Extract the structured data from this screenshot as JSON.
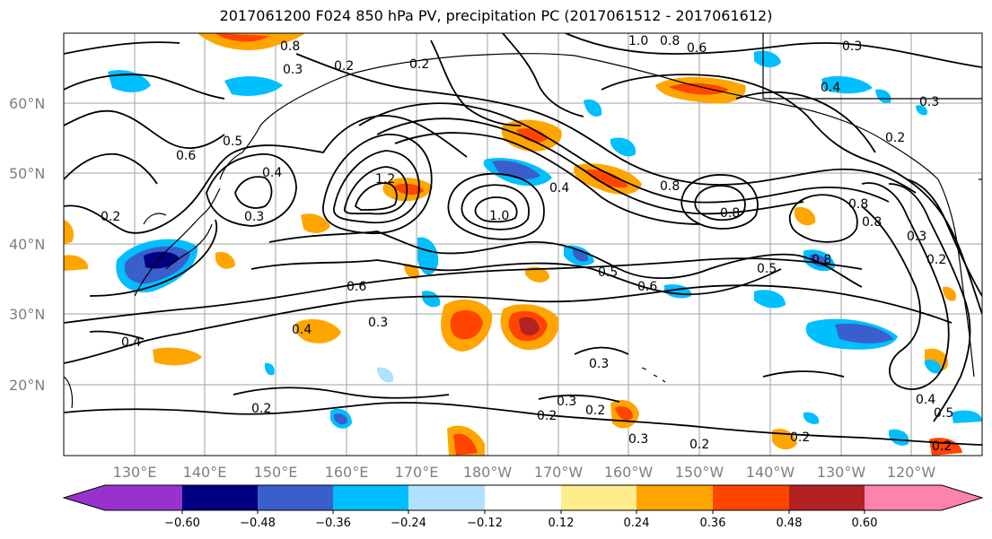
{
  "title": "2017061200 F024 850 hPa PV, precipitation PC (2017061512 - 2017061612)",
  "lat_labels": [
    "60°N",
    "50°N",
    "40°N",
    "30°N",
    "20°N"
  ],
  "lon_labels": [
    "130°E",
    "140°E",
    "150°E",
    "160°E",
    "170°E",
    "180°W",
    "170°W",
    "160°W",
    "150°W",
    "140°W",
    "130°W",
    "120°W"
  ],
  "colorbar": {
    "colors": [
      "#9932cc",
      "#000080",
      "#3a5fcd",
      "#00bfff",
      "#b0e2ff",
      "#ffffff",
      "#ffec8b",
      "#ffa500",
      "#ff4500",
      "#b22222",
      "#ff82ab"
    ],
    "ticks": [
      "−0.60",
      "−0.48",
      "−0.36",
      "−0.24",
      "−0.12",
      "0.12",
      "0.24",
      "0.36",
      "0.48",
      "0.60"
    ]
  },
  "contour_labels": [
    "0.8",
    "0.3",
    "0.2",
    "0.2",
    "1.0",
    "0.8",
    "0.6",
    "0.3",
    "0.4",
    "0.3",
    "0.2",
    "0.5",
    "0.4",
    "0.6",
    "0.3",
    "0.2",
    "1.2",
    "1.0",
    "0.4",
    "0.8",
    "0.8",
    "0.8",
    "0.5",
    "0.6",
    "0.8",
    "0.6",
    "0.5",
    "0.4",
    "0.3",
    "0.4",
    "0.3",
    "0.2",
    "0.2",
    "0.3",
    "0.2",
    "0.2",
    "0.3",
    "0.2",
    "0.8",
    "0.3",
    "0.2",
    "0.2",
    "0.4",
    "0.5"
  ]
}
